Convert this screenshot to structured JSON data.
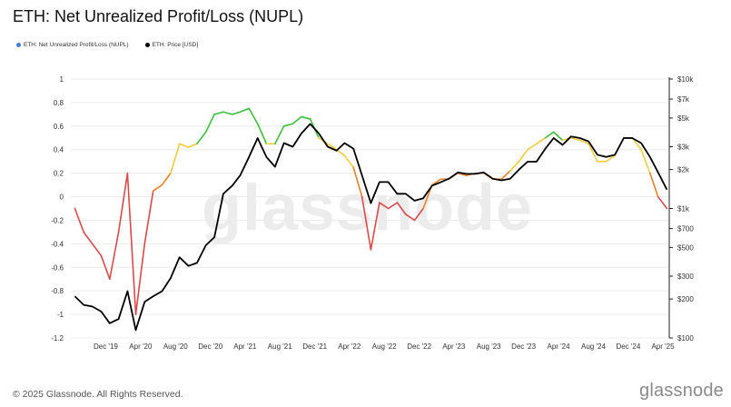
{
  "header": {
    "title": "ETH: Net Unrealized Profit/Loss (NUPL)"
  },
  "legend": [
    {
      "label": "ETH: Net Unrealized Profit/Loss (NUPL)",
      "color": "#4a7bd6"
    },
    {
      "label": "ETH: Price [USD]",
      "color": "#000000"
    }
  ],
  "footer": {
    "copyright": "© 2025 Glassnode. All Rights Reserved.",
    "brand": "glassnode"
  },
  "watermark": "glassnode",
  "chart_data": {
    "type": "line",
    "left_axis": {
      "ticks": [
        "1",
        "0.8",
        "0.6",
        "0.4",
        "0.2",
        "0",
        "-0.2",
        "-0.4",
        "-0.6",
        "-0.8",
        "-1",
        "-1.2"
      ],
      "range": [
        -1.2,
        1
      ]
    },
    "right_axis": {
      "ticks": [
        "$10k",
        "$7k",
        "$5k",
        "$3k",
        "$2k",
        "$1k",
        "$700",
        "$500",
        "$300",
        "$200",
        "$100"
      ],
      "scale": "log",
      "range": [
        100,
        10000
      ]
    },
    "x_ticks": [
      "Dec '19",
      "Apr '20",
      "Aug '20",
      "Dec '20",
      "Apr '21",
      "Aug '21",
      "Dec '21",
      "Apr '22",
      "Aug '22",
      "Dec '22",
      "Apr '23",
      "Aug '23",
      "Dec '23",
      "Apr '24",
      "Aug '24",
      "Dec '24",
      "Apr '25"
    ],
    "grid": true,
    "color_bands": {
      "capitulation": "#d94a4a",
      "hope_fear": "#e8802a",
      "optimism_anxiety": "#f2cc3d",
      "belief_denial": "#3cbf3c",
      "euphoria_greed": "#3a6fd8"
    },
    "series": [
      {
        "name": "ETH: Net Unrealized Profit/Loss (NUPL)",
        "x": [
          "2019-08",
          "2019-09",
          "2019-10",
          "2019-11",
          "2019-12",
          "2020-01",
          "2020-02",
          "2020-03",
          "2020-04",
          "2020-05",
          "2020-06",
          "2020-07",
          "2020-08",
          "2020-09",
          "2020-10",
          "2020-11",
          "2020-12",
          "2021-01",
          "2021-02",
          "2021-03",
          "2021-04",
          "2021-05",
          "2021-06",
          "2021-07",
          "2021-08",
          "2021-09",
          "2021-10",
          "2021-11",
          "2021-12",
          "2022-01",
          "2022-02",
          "2022-03",
          "2022-04",
          "2022-05",
          "2022-06",
          "2022-07",
          "2022-08",
          "2022-09",
          "2022-10",
          "2022-11",
          "2022-12",
          "2023-01",
          "2023-02",
          "2023-03",
          "2023-04",
          "2023-05",
          "2023-06",
          "2023-07",
          "2023-08",
          "2023-09",
          "2023-10",
          "2023-11",
          "2023-12",
          "2024-01",
          "2024-02",
          "2024-03",
          "2024-04",
          "2024-05",
          "2024-06",
          "2024-07",
          "2024-08",
          "2024-09",
          "2024-10",
          "2024-11",
          "2024-12",
          "2025-01",
          "2025-02",
          "2025-03",
          "2025-04"
        ],
        "values": [
          -0.1,
          -0.3,
          -0.4,
          -0.5,
          -0.7,
          -0.3,
          0.2,
          -1.0,
          -0.4,
          0.05,
          0.1,
          0.2,
          0.45,
          0.42,
          0.45,
          0.55,
          0.7,
          0.72,
          0.7,
          0.72,
          0.75,
          0.62,
          0.45,
          0.45,
          0.6,
          0.62,
          0.68,
          0.66,
          0.5,
          0.45,
          0.4,
          0.35,
          0.25,
          0.0,
          -0.45,
          -0.05,
          -0.1,
          -0.05,
          -0.15,
          -0.2,
          -0.1,
          0.1,
          0.15,
          0.15,
          0.2,
          0.18,
          0.2,
          0.2,
          0.15,
          0.15,
          0.22,
          0.3,
          0.4,
          0.45,
          0.5,
          0.55,
          0.48,
          0.5,
          0.48,
          0.45,
          0.3,
          0.3,
          0.35,
          0.5,
          0.5,
          0.4,
          0.2,
          0.0,
          -0.1
        ]
      },
      {
        "name": "ETH: Price [USD]",
        "x": [
          "2019-08",
          "2019-09",
          "2019-10",
          "2019-11",
          "2019-12",
          "2020-01",
          "2020-02",
          "2020-03",
          "2020-04",
          "2020-05",
          "2020-06",
          "2020-07",
          "2020-08",
          "2020-09",
          "2020-10",
          "2020-11",
          "2020-12",
          "2021-01",
          "2021-02",
          "2021-03",
          "2021-04",
          "2021-05",
          "2021-06",
          "2021-07",
          "2021-08",
          "2021-09",
          "2021-10",
          "2021-11",
          "2021-12",
          "2022-01",
          "2022-02",
          "2022-03",
          "2022-04",
          "2022-05",
          "2022-06",
          "2022-07",
          "2022-08",
          "2022-09",
          "2022-10",
          "2022-11",
          "2022-12",
          "2023-01",
          "2023-02",
          "2023-03",
          "2023-04",
          "2023-05",
          "2023-06",
          "2023-07",
          "2023-08",
          "2023-09",
          "2023-10",
          "2023-11",
          "2023-12",
          "2024-01",
          "2024-02",
          "2024-03",
          "2024-04",
          "2024-05",
          "2024-06",
          "2024-07",
          "2024-08",
          "2024-09",
          "2024-10",
          "2024-11",
          "2024-12",
          "2025-01",
          "2025-02",
          "2025-03",
          "2025-04"
        ],
        "values": [
          210,
          180,
          175,
          160,
          130,
          140,
          230,
          115,
          190,
          210,
          230,
          290,
          420,
          360,
          380,
          520,
          600,
          1300,
          1500,
          1800,
          2500,
          3500,
          2500,
          2100,
          3200,
          3000,
          3800,
          4500,
          3800,
          3000,
          2800,
          3200,
          2900,
          1800,
          1100,
          1600,
          1600,
          1300,
          1300,
          1150,
          1200,
          1500,
          1600,
          1700,
          1900,
          1850,
          1850,
          1900,
          1700,
          1650,
          1700,
          2000,
          2300,
          2300,
          2900,
          3500,
          3100,
          3600,
          3500,
          3300,
          2600,
          2500,
          2600,
          3500,
          3500,
          3200,
          2500,
          1900,
          1400
        ]
      }
    ]
  }
}
